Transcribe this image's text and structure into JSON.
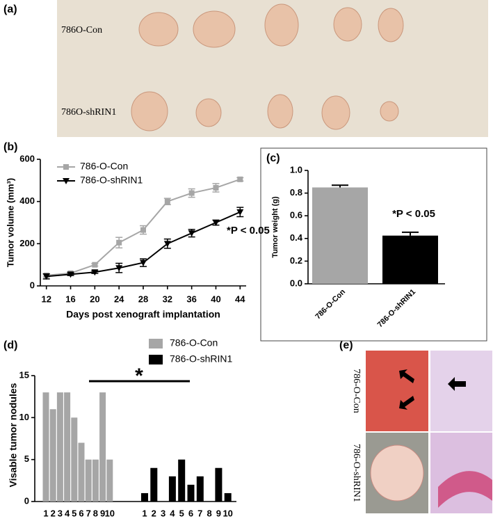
{
  "panel_a": {
    "label": "(a)",
    "rows": [
      "786O-Con",
      "786O-shRIN1"
    ]
  },
  "panel_e": {
    "label": "(e)",
    "rows": [
      "786-O-Con",
      "786-O-shRIN1"
    ]
  },
  "chart_data": [
    {
      "panel": "(b)",
      "type": "line",
      "x": [
        12,
        16,
        20,
        24,
        28,
        32,
        36,
        40,
        44
      ],
      "xlim": [
        11,
        45
      ],
      "xticks": [
        12,
        16,
        20,
        24,
        28,
        32,
        36,
        40,
        44
      ],
      "ylim": [
        0,
        600
      ],
      "yticks": [
        0,
        200,
        400,
        600
      ],
      "xlabel": "Days post xenograft implantation",
      "ylabel": "Tumor volume (mm³)",
      "annotation": "*P < 0.05",
      "series": [
        {
          "name": "786-O-Con",
          "color": "#a6a6a6",
          "marker": "square",
          "values": [
            50,
            60,
            100,
            205,
            265,
            400,
            440,
            465,
            505
          ],
          "errors": [
            8,
            6,
            6,
            25,
            20,
            15,
            20,
            20,
            8
          ]
        },
        {
          "name": "786-O-shRIN1",
          "color": "#000000",
          "marker": "triangle-down",
          "values": [
            45,
            55,
            65,
            85,
            110,
            200,
            250,
            300,
            350
          ],
          "errors": [
            12,
            6,
            6,
            22,
            18,
            22,
            18,
            12,
            22
          ]
        }
      ]
    },
    {
      "panel": "(c)",
      "type": "bar",
      "categories": [
        "786-O-Con",
        "786-O-shRIN1"
      ],
      "values": [
        0.85,
        0.425
      ],
      "errors": [
        0.02,
        0.03
      ],
      "colors": [
        "#a6a6a6",
        "#000000"
      ],
      "ylim": [
        0,
        1
      ],
      "yticks": [
        {
          "value": 0,
          "label": "0.0"
        },
        0.2,
        0.4,
        0.6,
        0.8,
        {
          "value": 1,
          "label": "1.0"
        }
      ],
      "ylabel": "Tumor weight (g)",
      "annotation": "*P < 0.05"
    },
    {
      "panel": "(d)",
      "type": "grouped_bar",
      "categories": [
        "1",
        "2",
        "3",
        "4",
        "5",
        "6",
        "7",
        "8",
        "9",
        "10"
      ],
      "ylim": [
        0,
        15
      ],
      "yticks": [
        0,
        5,
        10,
        15
      ],
      "ylabel": "Visable tumor nodules",
      "annotation": "*",
      "series": [
        {
          "name": "786-O-Con",
          "color": "#a6a6a6",
          "values": [
            13,
            11,
            13,
            13,
            10,
            7,
            5,
            5,
            13,
            5
          ]
        },
        {
          "name": "786-O-shRIN1",
          "color": "#000000",
          "values": [
            1,
            4,
            0,
            3,
            5,
            2,
            3,
            0,
            4,
            1
          ]
        }
      ]
    }
  ]
}
